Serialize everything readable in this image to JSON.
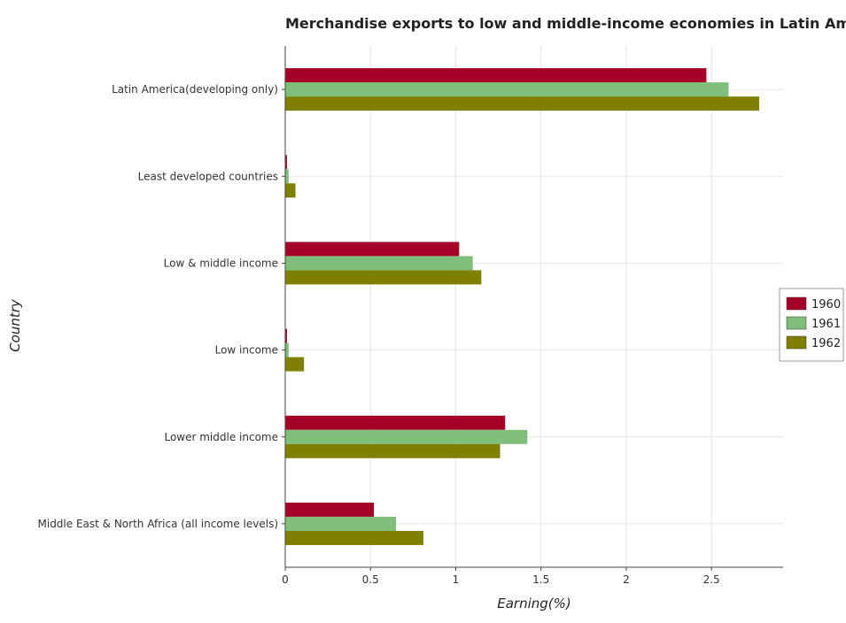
{
  "chart_data": {
    "type": "bar",
    "orientation": "horizontal",
    "title": "Merchandise exports to low and middle-income economies in Latin America",
    "xlabel": "Earning(%)",
    "ylabel": "Country",
    "categories": [
      "Latin America(developing only)",
      "Least developed countries",
      "Low & middle income",
      "Low income",
      "Lower middle income",
      "Middle East & North Africa (all income levels)"
    ],
    "series": [
      {
        "name": "1960",
        "color": "#a50026",
        "values": [
          2.47,
          0.01,
          1.02,
          0.01,
          1.29,
          0.52
        ]
      },
      {
        "name": "1961",
        "color": "#7fbf7b",
        "values": [
          2.6,
          0.02,
          1.1,
          0.02,
          1.42,
          0.65
        ]
      },
      {
        "name": "1962",
        "color": "#808000",
        "values": [
          2.78,
          0.06,
          1.15,
          0.11,
          1.26,
          0.81
        ]
      }
    ],
    "xlim": [
      0,
      2.92
    ],
    "xticks": [
      0,
      0.5,
      1,
      1.5,
      2,
      2.5
    ],
    "xtick_labels": [
      "0",
      "0.5",
      "1",
      "1.5",
      "2",
      "2.5"
    ],
    "grid": true,
    "legend_position": "right"
  }
}
